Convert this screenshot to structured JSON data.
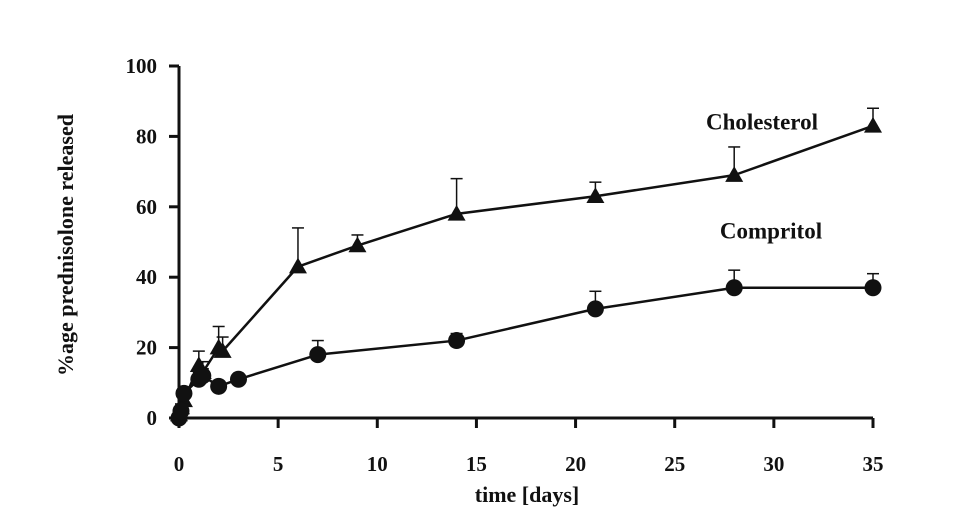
{
  "chart_data": {
    "type": "line",
    "xlabel": "time [days]",
    "ylabel": "%age prednisolone released",
    "xlim": [
      0,
      35
    ],
    "ylim": [
      0,
      100
    ],
    "xticks": [
      0,
      5,
      10,
      15,
      20,
      25,
      30,
      35
    ],
    "yticks": [
      0,
      20,
      40,
      60,
      80,
      100
    ],
    "grid": false,
    "legend": "inline labels",
    "series": [
      {
        "name": "Cholesterol",
        "marker": "triangle",
        "color": "#111111",
        "x": [
          0,
          0.1,
          0.25,
          1,
          1.2,
          2,
          2.2,
          6,
          9,
          14,
          21,
          28,
          35
        ],
        "y": [
          1,
          3,
          5,
          15,
          13,
          20,
          19,
          43,
          49,
          58,
          63,
          69,
          83
        ],
        "error_upper": [
          1,
          1,
          1,
          4,
          3,
          6,
          4,
          11,
          3,
          10,
          4,
          8,
          5
        ]
      },
      {
        "name": "Compritol",
        "marker": "circle",
        "color": "#111111",
        "x": [
          0,
          0.1,
          0.25,
          1,
          1.2,
          2,
          3,
          7,
          14,
          21,
          28,
          35
        ],
        "y": [
          0,
          2,
          7,
          11,
          12,
          9,
          11,
          18,
          22,
          31,
          37,
          37
        ],
        "error_upper": [
          1,
          1,
          1,
          2,
          2,
          1,
          1,
          4,
          2,
          5,
          5,
          4
        ]
      }
    ]
  }
}
